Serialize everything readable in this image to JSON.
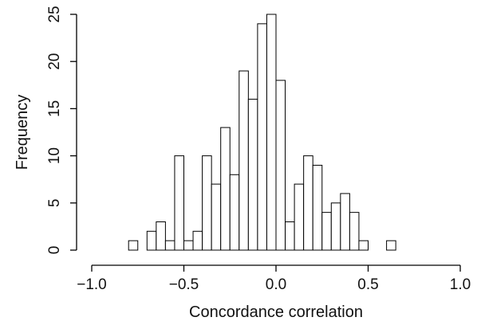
{
  "chart_data": {
    "type": "bar",
    "title": "",
    "xlabel": "Concordance correlation",
    "ylabel": "Frequency",
    "xlim": [
      -1.0,
      1.0
    ],
    "ylim": [
      0,
      25
    ],
    "grid": false,
    "bin_width": 0.05,
    "bin_starts": [
      -1.0,
      -0.95,
      -0.9,
      -0.85,
      -0.8,
      -0.75,
      -0.7,
      -0.65,
      -0.6,
      -0.55,
      -0.5,
      -0.45,
      -0.4,
      -0.35,
      -0.3,
      -0.25,
      -0.2,
      -0.15,
      -0.1,
      -0.05,
      0.0,
      0.05,
      0.1,
      0.15,
      0.2,
      0.25,
      0.3,
      0.35,
      0.4,
      0.45,
      0.5,
      0.55,
      0.6,
      0.65,
      0.7,
      0.75,
      0.8,
      0.85,
      0.9,
      0.95
    ],
    "values": [
      0,
      0,
      0,
      0,
      1,
      0,
      2,
      3,
      1,
      10,
      1,
      2,
      10,
      7,
      13,
      8,
      19,
      16,
      24,
      25,
      18,
      3,
      7,
      10,
      9,
      4,
      5,
      6,
      4,
      1,
      0,
      0,
      1,
      0,
      0,
      0,
      0,
      0,
      0,
      0
    ],
    "x_ticks": [
      -1.0,
      -0.5,
      0.0,
      0.5,
      1.0
    ],
    "x_tick_labels": [
      "−1.0",
      "−0.5",
      "0.0",
      "0.5",
      "1.0"
    ],
    "y_ticks": [
      0,
      5,
      10,
      15,
      20,
      25
    ],
    "y_tick_labels": [
      "0",
      "5",
      "10",
      "15",
      "20",
      "25"
    ]
  }
}
